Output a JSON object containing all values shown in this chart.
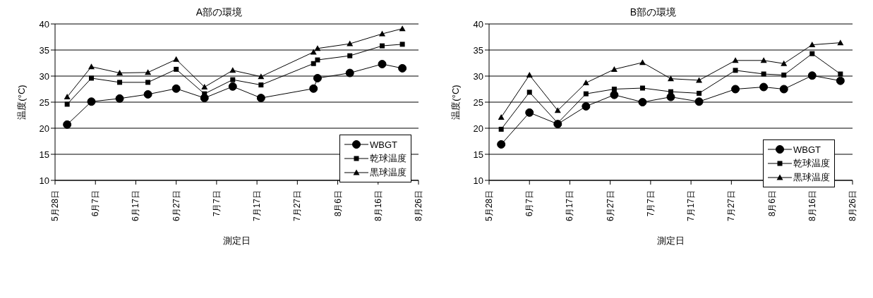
{
  "chart_data": [
    {
      "type": "line",
      "title": "A部の環境",
      "xlabel": "測定日",
      "ylabel": "温度(°C)",
      "x": [
        "--05-31",
        "--06-06",
        "--06-13",
        "--06-20",
        "--06-27",
        "--07-04",
        "--07-11",
        "--07-18",
        "--07-31",
        "--08-01",
        "--08-09",
        "--08-17",
        "--08-22"
      ],
      "series": [
        {
          "name": "WBGT",
          "color": "#000000",
          "marker": "circle",
          "values": [
            20.7,
            25.1,
            25.7,
            26.5,
            27.6,
            25.8,
            28.0,
            25.8,
            27.6,
            29.6,
            30.6,
            32.3,
            31.5
          ]
        },
        {
          "name": "乾球温度",
          "color": "#000000",
          "marker": "square",
          "values": [
            24.6,
            29.6,
            28.8,
            28.8,
            31.3,
            26.6,
            29.3,
            28.3,
            32.4,
            33.1,
            33.9,
            35.8,
            36.1
          ]
        },
        {
          "name": "黒球温度",
          "color": "#000000",
          "marker": "triangle",
          "values": [
            26.0,
            31.8,
            30.6,
            30.7,
            33.2,
            27.9,
            31.1,
            29.9,
            34.6,
            35.3,
            36.2,
            38.1,
            39.1
          ]
        }
      ],
      "xlim": [
        "--05-28",
        "--08-26"
      ],
      "xticks": [
        {
          "value": "--05-28",
          "label": "5月28日"
        },
        {
          "value": "--06-07",
          "label": "6月7日"
        },
        {
          "value": "--06-17",
          "label": "6月17日"
        },
        {
          "value": "--06-27",
          "label": "6月27日"
        },
        {
          "value": "--07-07",
          "label": "7月7日"
        },
        {
          "value": "--07-17",
          "label": "7月17日"
        },
        {
          "value": "--07-27",
          "label": "7月27日"
        },
        {
          "value": "--08-06",
          "label": "8月6日"
        },
        {
          "value": "--08-16",
          "label": "8月16日"
        },
        {
          "value": "--08-26",
          "label": "8月26日"
        }
      ],
      "ylim": [
        10,
        40
      ],
      "yticks": [
        10,
        15,
        20,
        25,
        30,
        35,
        40
      ],
      "grid": "y",
      "legend": "right",
      "line_style": "solid"
    },
    {
      "type": "line",
      "title": "B部の環境",
      "xlabel": "測定日",
      "ylabel": "温度(°C)",
      "x": [
        "--05-31",
        "--06-07",
        "--06-14",
        "--06-21",
        "--06-28",
        "--07-05",
        "--07-12",
        "--07-19",
        "--07-28",
        "--08-04",
        "--08-09",
        "--08-16",
        "--08-23"
      ],
      "series": [
        {
          "name": "WBGT",
          "color": "#000000",
          "marker": "circle",
          "values": [
            16.9,
            23.0,
            20.8,
            24.2,
            26.4,
            25.0,
            26.0,
            25.1,
            27.5,
            27.9,
            27.5,
            30.1,
            29.1
          ]
        },
        {
          "name": "乾球温度",
          "color": "#000000",
          "marker": "square",
          "values": [
            19.8,
            26.9,
            21.0,
            26.6,
            27.5,
            27.7,
            27.0,
            26.7,
            31.1,
            30.4,
            30.2,
            34.3,
            30.4
          ]
        },
        {
          "name": "黒球温度",
          "color": "#000000",
          "marker": "triangle",
          "values": [
            22.1,
            30.2,
            23.4,
            28.7,
            31.3,
            32.6,
            29.5,
            29.2,
            33.0,
            33.0,
            32.4,
            36.0,
            36.4
          ]
        }
      ],
      "xlim": [
        "--05-28",
        "--08-26"
      ],
      "xticks": [
        {
          "value": "--05-28",
          "label": "5月28日"
        },
        {
          "value": "--06-07",
          "label": "6月7日"
        },
        {
          "value": "--06-17",
          "label": "6月17日"
        },
        {
          "value": "--06-27",
          "label": "6月27日"
        },
        {
          "value": "--07-07",
          "label": "7月7日"
        },
        {
          "value": "--07-17",
          "label": "7月17日"
        },
        {
          "value": "--07-27",
          "label": "7月27日"
        },
        {
          "value": "--08-06",
          "label": "8月6日"
        },
        {
          "value": "--08-16",
          "label": "8月16日"
        },
        {
          "value": "--08-26",
          "label": "8月26日"
        }
      ],
      "ylim": [
        10,
        40
      ],
      "yticks": [
        10,
        15,
        20,
        25,
        30,
        35,
        40
      ],
      "grid": "y",
      "legend": "bottom right",
      "line_style": "solid"
    }
  ]
}
